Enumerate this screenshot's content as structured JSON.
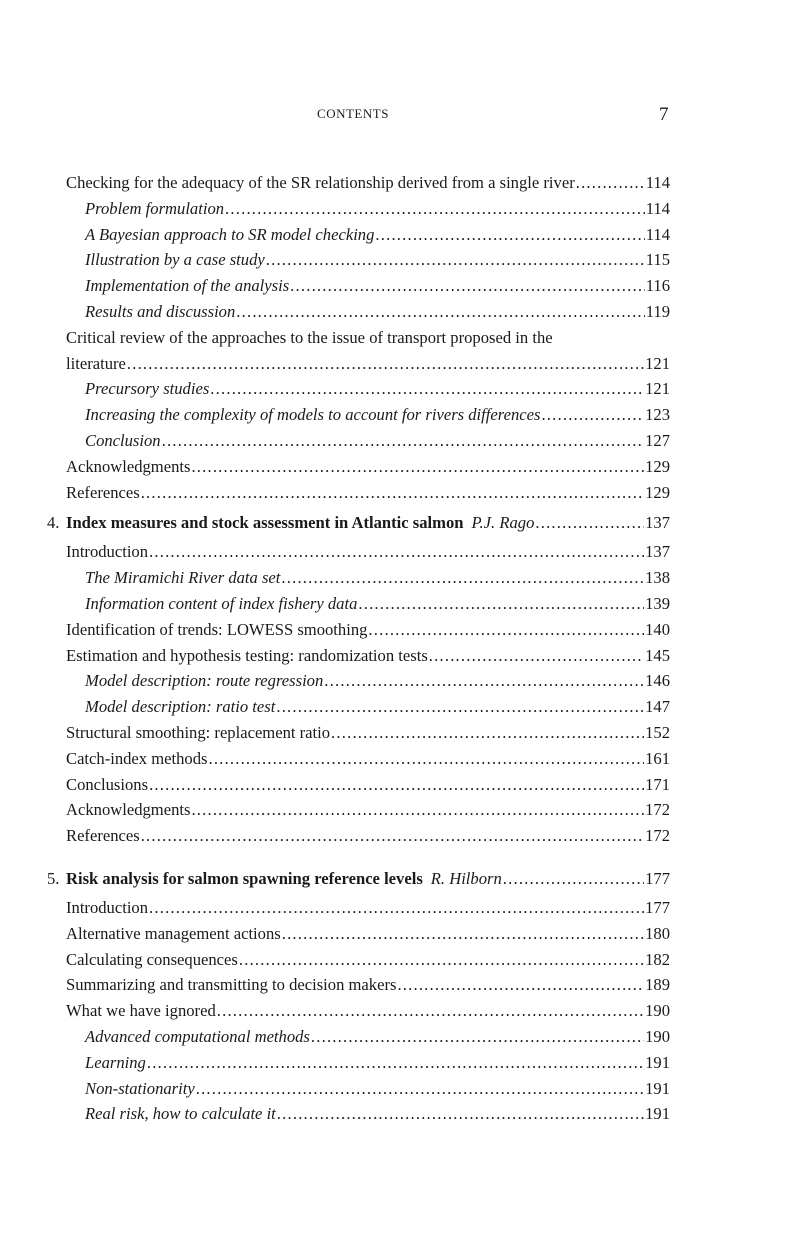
{
  "header": {
    "running_head": "CONTENTS",
    "page_number": "7"
  },
  "toc": [
    {
      "type": "section",
      "title": "Checking for the adequacy of the SR relationship derived from a single river",
      "page": "114"
    },
    {
      "type": "sub",
      "title": "Problem formulation",
      "page": "114"
    },
    {
      "type": "sub",
      "title": "A Bayesian approach to SR model checking",
      "page": "114"
    },
    {
      "type": "sub",
      "title": "Illustration by a case study",
      "page": "115"
    },
    {
      "type": "sub",
      "title": "Implementation of the analysis",
      "page": "116"
    },
    {
      "type": "sub",
      "title": "Results and discussion",
      "page": "119"
    },
    {
      "type": "section",
      "title": "Critical review of the approaches to the issue of transport proposed in the",
      "title_continued": "literature",
      "page": "121"
    },
    {
      "type": "sub",
      "title": "Precursory studies",
      "page": "121"
    },
    {
      "type": "sub",
      "title": "Increasing the complexity of models to account for rivers differences",
      "page": "123"
    },
    {
      "type": "sub",
      "title": "Conclusion",
      "page": "127"
    },
    {
      "type": "section",
      "title": "Acknowledgments",
      "page": "129"
    },
    {
      "type": "section",
      "title": "References",
      "page": "129"
    },
    {
      "type": "chapter",
      "number": "4.",
      "title": "Index measures and stock assessment in Atlantic salmon",
      "author": "P.J. Rago",
      "page": "137"
    },
    {
      "type": "section",
      "title": "Introduction",
      "page": "137"
    },
    {
      "type": "sub",
      "title": "The Miramichi River data set",
      "page": "138"
    },
    {
      "type": "sub",
      "title": "Information content of index fishery data",
      "page": "139"
    },
    {
      "type": "section",
      "title": "Identification of trends: LOWESS smoothing",
      "page": "140"
    },
    {
      "type": "section",
      "title": "Estimation and hypothesis testing: randomization tests",
      "page": "145"
    },
    {
      "type": "sub",
      "title": "Model description: route regression",
      "page": "146"
    },
    {
      "type": "sub",
      "title": "Model description: ratio test",
      "page": "147"
    },
    {
      "type": "section",
      "title": "Structural smoothing: replacement ratio",
      "page": "152"
    },
    {
      "type": "section",
      "title": "Catch-index methods",
      "page": "161"
    },
    {
      "type": "section",
      "title": "Conclusions",
      "page": "171"
    },
    {
      "type": "section",
      "title": "Acknowledgments",
      "page": "172"
    },
    {
      "type": "section",
      "title": "References",
      "page": "172"
    },
    {
      "type": "chapter",
      "number": "5.",
      "title": "Risk analysis for salmon spawning reference levels",
      "author": "R. Hilborn",
      "page": "177"
    },
    {
      "type": "section",
      "title": "Introduction",
      "page": "177"
    },
    {
      "type": "section",
      "title": "Alternative management actions",
      "page": "180"
    },
    {
      "type": "section",
      "title": "Calculating consequences",
      "page": "182"
    },
    {
      "type": "section",
      "title": "Summarizing and transmitting to decision makers",
      "page": "189"
    },
    {
      "type": "section",
      "title": "What we have ignored",
      "page": "190"
    },
    {
      "type": "sub",
      "title": "Advanced computational methods",
      "page": "190"
    },
    {
      "type": "sub",
      "title": "Learning",
      "page": "191"
    },
    {
      "type": "sub",
      "title": "Non-stationarity",
      "page": "191"
    },
    {
      "type": "sub",
      "title": "Real risk, how to calculate it",
      "page": "191"
    }
  ]
}
